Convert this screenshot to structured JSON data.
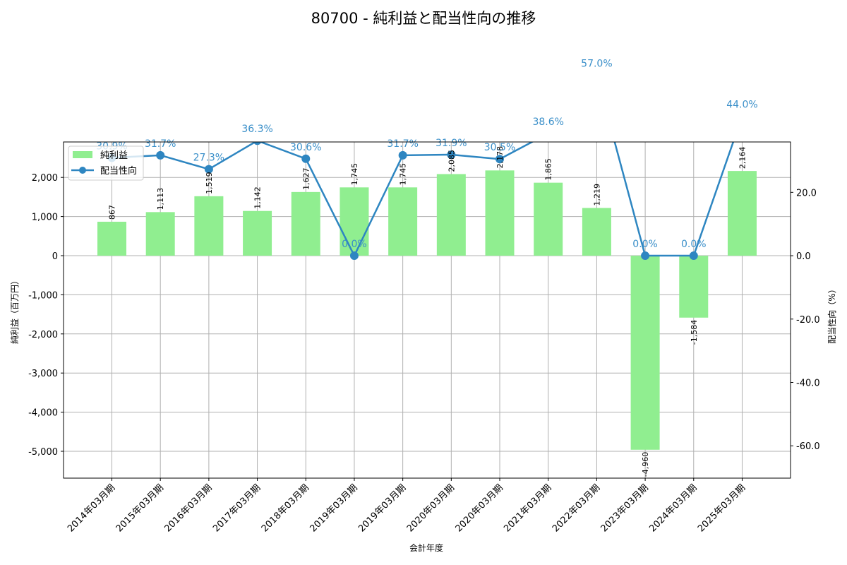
{
  "chart_data": {
    "type": "bar+line",
    "title": "80700 - 純利益と配当性向の推移",
    "xlabel": "会計年度",
    "ylabel_left": "純利益（百万円）",
    "ylabel_right": "配当性向（%）",
    "categories": [
      "2014年03月期",
      "2015年03月期",
      "2016年03月期",
      "2017年03月期",
      "2018年03月期",
      "2019年03月期",
      "2019年03月期",
      "2020年03月期",
      "2020年03月期",
      "2021年03月期",
      "2022年03月期",
      "2023年03月期",
      "2024年03月期",
      "2025年03月期"
    ],
    "series": [
      {
        "name": "純利益",
        "type": "bar",
        "axis": "left",
        "color": "#90ee90",
        "values": [
          867,
          1113,
          1519,
          1142,
          1627,
          1745,
          1745,
          2085,
          2178,
          1865,
          1219,
          -4960,
          -1584,
          2164
        ],
        "labels": [
          "867",
          "1,113",
          "1,519",
          "1,142",
          "1,627",
          "1,745",
          "1,745",
          "2,085",
          "2,178",
          "1,865",
          "1,219",
          "-4,960",
          "-1,584",
          "2,164"
        ]
      },
      {
        "name": "配当性向",
        "type": "line",
        "axis": "right",
        "color": "#2e86c1",
        "values": [
          30.9,
          31.7,
          27.3,
          36.3,
          30.6,
          0.0,
          31.7,
          31.9,
          30.5,
          38.6,
          57.0,
          0.0,
          0.0,
          44.0
        ],
        "labels": [
          "30.9%",
          "31.7%",
          "27.3%",
          "36.3%",
          "30.6%",
          "0.0%",
          "31.7%",
          "31.9%",
          "30.5%",
          "38.6%",
          "57.0%",
          "0.0%",
          "0.0%",
          "44.0%"
        ]
      }
    ],
    "ylim_left": [
      -5686,
      2906
    ],
    "ylim_right": [
      -70.2,
      35.9
    ],
    "yticks_left": [
      2000,
      1000,
      0,
      -1000,
      -2000,
      -3000,
      -4000,
      -5000
    ],
    "yticks_left_labels": [
      "2,000",
      "1,000",
      "0",
      "-1,000",
      "-2,000",
      "-3,000",
      "-4,000",
      "-5,000"
    ],
    "yticks_right": [
      20,
      0,
      -20,
      -40,
      -60
    ],
    "yticks_right_labels": [
      "20.0",
      "0.0",
      "-20.0",
      "-40.0",
      "-60.0"
    ],
    "grid": true,
    "legend_position": "upper left"
  }
}
